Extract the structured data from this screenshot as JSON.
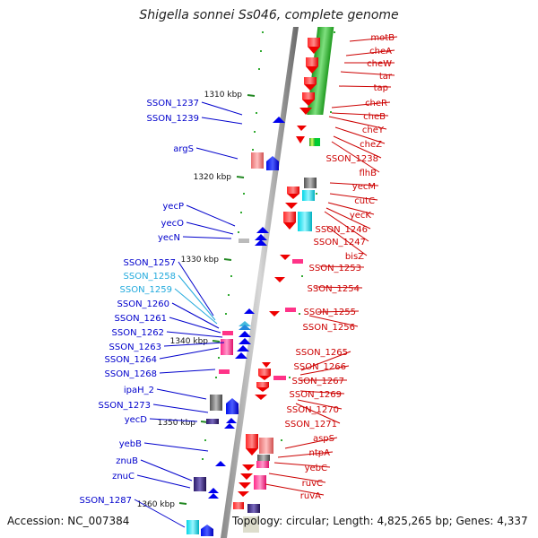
{
  "title": "Shigella sonnei Ss046, complete genome",
  "accession": "Accession: NC_007384",
  "topology": "Topology: circular; Length: 4,825,265 bp; Genes: 4,337",
  "ruler": [
    "1310 kbp",
    "1320 kbp",
    "1330 kbp",
    "1340 kbp",
    "1350 kbp",
    "1360 kbp"
  ],
  "left_labels": [
    {
      "text": "SSON_1237",
      "color": "#0000cc"
    },
    {
      "text": "SSON_1239",
      "color": "#0000cc"
    },
    {
      "text": "argS",
      "color": "#0000cc"
    },
    {
      "text": "yecP",
      "color": "#0000cc"
    },
    {
      "text": "yecO",
      "color": "#0000cc"
    },
    {
      "text": "yecN",
      "color": "#0000cc"
    },
    {
      "text": "SSON_1257",
      "color": "#0000cc"
    },
    {
      "text": "SSON_1258",
      "color": "#22aadd"
    },
    {
      "text": "SSON_1259",
      "color": "#22aadd"
    },
    {
      "text": "SSON_1260",
      "color": "#0000cc"
    },
    {
      "text": "SSON_1261",
      "color": "#0000cc"
    },
    {
      "text": "SSON_1262",
      "color": "#0000cc"
    },
    {
      "text": "SSON_1263",
      "color": "#0000cc"
    },
    {
      "text": "SSON_1264",
      "color": "#0000cc"
    },
    {
      "text": "SSON_1268",
      "color": "#0000cc"
    },
    {
      "text": "ipaH_2",
      "color": "#0000cc"
    },
    {
      "text": "SSON_1273",
      "color": "#0000cc"
    },
    {
      "text": "yecD",
      "color": "#0000cc"
    },
    {
      "text": "yebB",
      "color": "#0000cc"
    },
    {
      "text": "znuB",
      "color": "#0000cc"
    },
    {
      "text": "znuC",
      "color": "#0000cc"
    },
    {
      "text": "SSON_1287",
      "color": "#0000cc"
    }
  ],
  "right_labels": [
    {
      "text": "motB",
      "color": "#cc0000"
    },
    {
      "text": "cheA",
      "color": "#cc0000"
    },
    {
      "text": "cheW",
      "color": "#cc0000"
    },
    {
      "text": "tar",
      "color": "#cc0000"
    },
    {
      "text": "tap",
      "color": "#cc0000"
    },
    {
      "text": "cheR",
      "color": "#cc0000"
    },
    {
      "text": "cheB",
      "color": "#cc0000"
    },
    {
      "text": "cheY",
      "color": "#cc0000"
    },
    {
      "text": "cheZ",
      "color": "#cc0000"
    },
    {
      "text": "SSON_1238",
      "color": "#cc0000"
    },
    {
      "text": "flhB",
      "color": "#cc0000"
    },
    {
      "text": "yecM",
      "color": "#cc0000"
    },
    {
      "text": "cutC",
      "color": "#cc0000"
    },
    {
      "text": "yecK",
      "color": "#cc0000"
    },
    {
      "text": "SSON_1246",
      "color": "#cc0000"
    },
    {
      "text": "SSON_1247",
      "color": "#cc0000"
    },
    {
      "text": "bisZ",
      "color": "#cc0000"
    },
    {
      "text": "SSON_1253",
      "color": "#cc0000"
    },
    {
      "text": "SSON_1254",
      "color": "#cc0000"
    },
    {
      "text": "SSON_1255",
      "color": "#cc0000"
    },
    {
      "text": "SSON_1256",
      "color": "#cc0000"
    },
    {
      "text": "SSON_1265",
      "color": "#cc0000"
    },
    {
      "text": "SSON_1266",
      "color": "#cc0000"
    },
    {
      "text": "SSON_1267",
      "color": "#cc0000"
    },
    {
      "text": "SSON_1269",
      "color": "#cc0000"
    },
    {
      "text": "SSON_1270",
      "color": "#cc0000"
    },
    {
      "text": "SSON_1271",
      "color": "#cc0000"
    },
    {
      "text": "aspS",
      "color": "#cc0000"
    },
    {
      "text": "ntpA",
      "color": "#cc0000"
    },
    {
      "text": "yebC",
      "color": "#cc0000"
    },
    {
      "text": "ruvC",
      "color": "#cc0000"
    },
    {
      "text": "ruvA",
      "color": "#cc0000"
    }
  ]
}
